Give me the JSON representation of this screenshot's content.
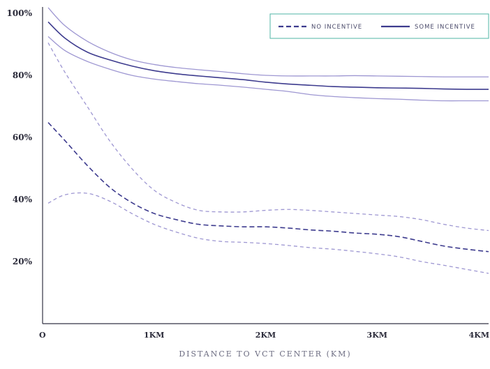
{
  "chart_data": {
    "type": "line",
    "xlabel": "DISTANCE TO VCT CENTER (KM)",
    "ylabel": "",
    "xlim": [
      0,
      4
    ],
    "ylim": [
      0,
      100
    ],
    "x_ticks": [
      0,
      1,
      2,
      3,
      4
    ],
    "x_tick_labels": [
      "O",
      "1KM",
      "2KM",
      "3KM",
      "4KM"
    ],
    "y_ticks": [
      20,
      40,
      60,
      80,
      100
    ],
    "y_tick_labels": [
      "20%",
      "40%",
      "60%",
      "80%",
      "100%"
    ],
    "grid": false,
    "legend_position": "top-right",
    "colors": {
      "main": "#3d3b8e",
      "band": "#9e97d2",
      "legend_border": "#4fb5a4",
      "axis": "#333344"
    },
    "x": [
      0.05,
      0.2,
      0.4,
      0.6,
      0.8,
      1.0,
      1.2,
      1.4,
      1.6,
      1.8,
      2.0,
      2.2,
      2.4,
      2.6,
      2.8,
      3.0,
      3.2,
      3.4,
      3.6,
      3.8,
      4.0
    ],
    "series": [
      {
        "name": "NO INCENTIVE",
        "style": "dashed",
        "values": [
          64.8,
          59,
          51,
          44,
          39,
          35.5,
          33.5,
          32,
          31.5,
          31.2,
          31.2,
          30.8,
          30.2,
          29.8,
          29.2,
          28.8,
          28,
          26.5,
          25,
          24,
          23.2
        ]
      },
      {
        "name": "SOME INCENTIVE",
        "style": "solid",
        "values": [
          97.2,
          92,
          87.5,
          85,
          83,
          81.5,
          80.5,
          79.8,
          79.2,
          78.6,
          77.8,
          77.2,
          76.8,
          76.4,
          76.2,
          76,
          75.9,
          75.8,
          75.6,
          75.5,
          75.5
        ]
      }
    ],
    "confidence_bands": [
      {
        "series": "NO INCENTIVE",
        "style": "dashed",
        "upper": [
          90.5,
          81,
          70,
          59,
          50,
          43,
          39,
          36.5,
          36,
          36,
          36.5,
          36.8,
          36.5,
          36,
          35.5,
          35,
          34.5,
          33.5,
          32,
          30.8,
          30
        ],
        "lower": [
          38.8,
          41.5,
          42,
          39.5,
          35.5,
          32,
          29.5,
          27.5,
          26.5,
          26.2,
          25.8,
          25.2,
          24.5,
          24,
          23.3,
          22.5,
          21.5,
          20,
          18.8,
          17.5,
          16.2
        ]
      },
      {
        "series": "SOME INCENTIVE",
        "style": "solid",
        "upper": [
          101.8,
          96,
          91,
          87.5,
          85,
          83.5,
          82.5,
          81.8,
          81.2,
          80.5,
          80,
          79.8,
          79.8,
          79.8,
          79.9,
          79.8,
          79.7,
          79.6,
          79.5,
          79.5,
          79.5
        ],
        "lower": [
          92.5,
          88,
          84.5,
          82,
          80,
          78.8,
          78,
          77.3,
          76.8,
          76.2,
          75.5,
          74.8,
          73.8,
          73.2,
          72.8,
          72.5,
          72.3,
          72,
          71.8,
          71.8,
          71.8
        ]
      }
    ]
  }
}
